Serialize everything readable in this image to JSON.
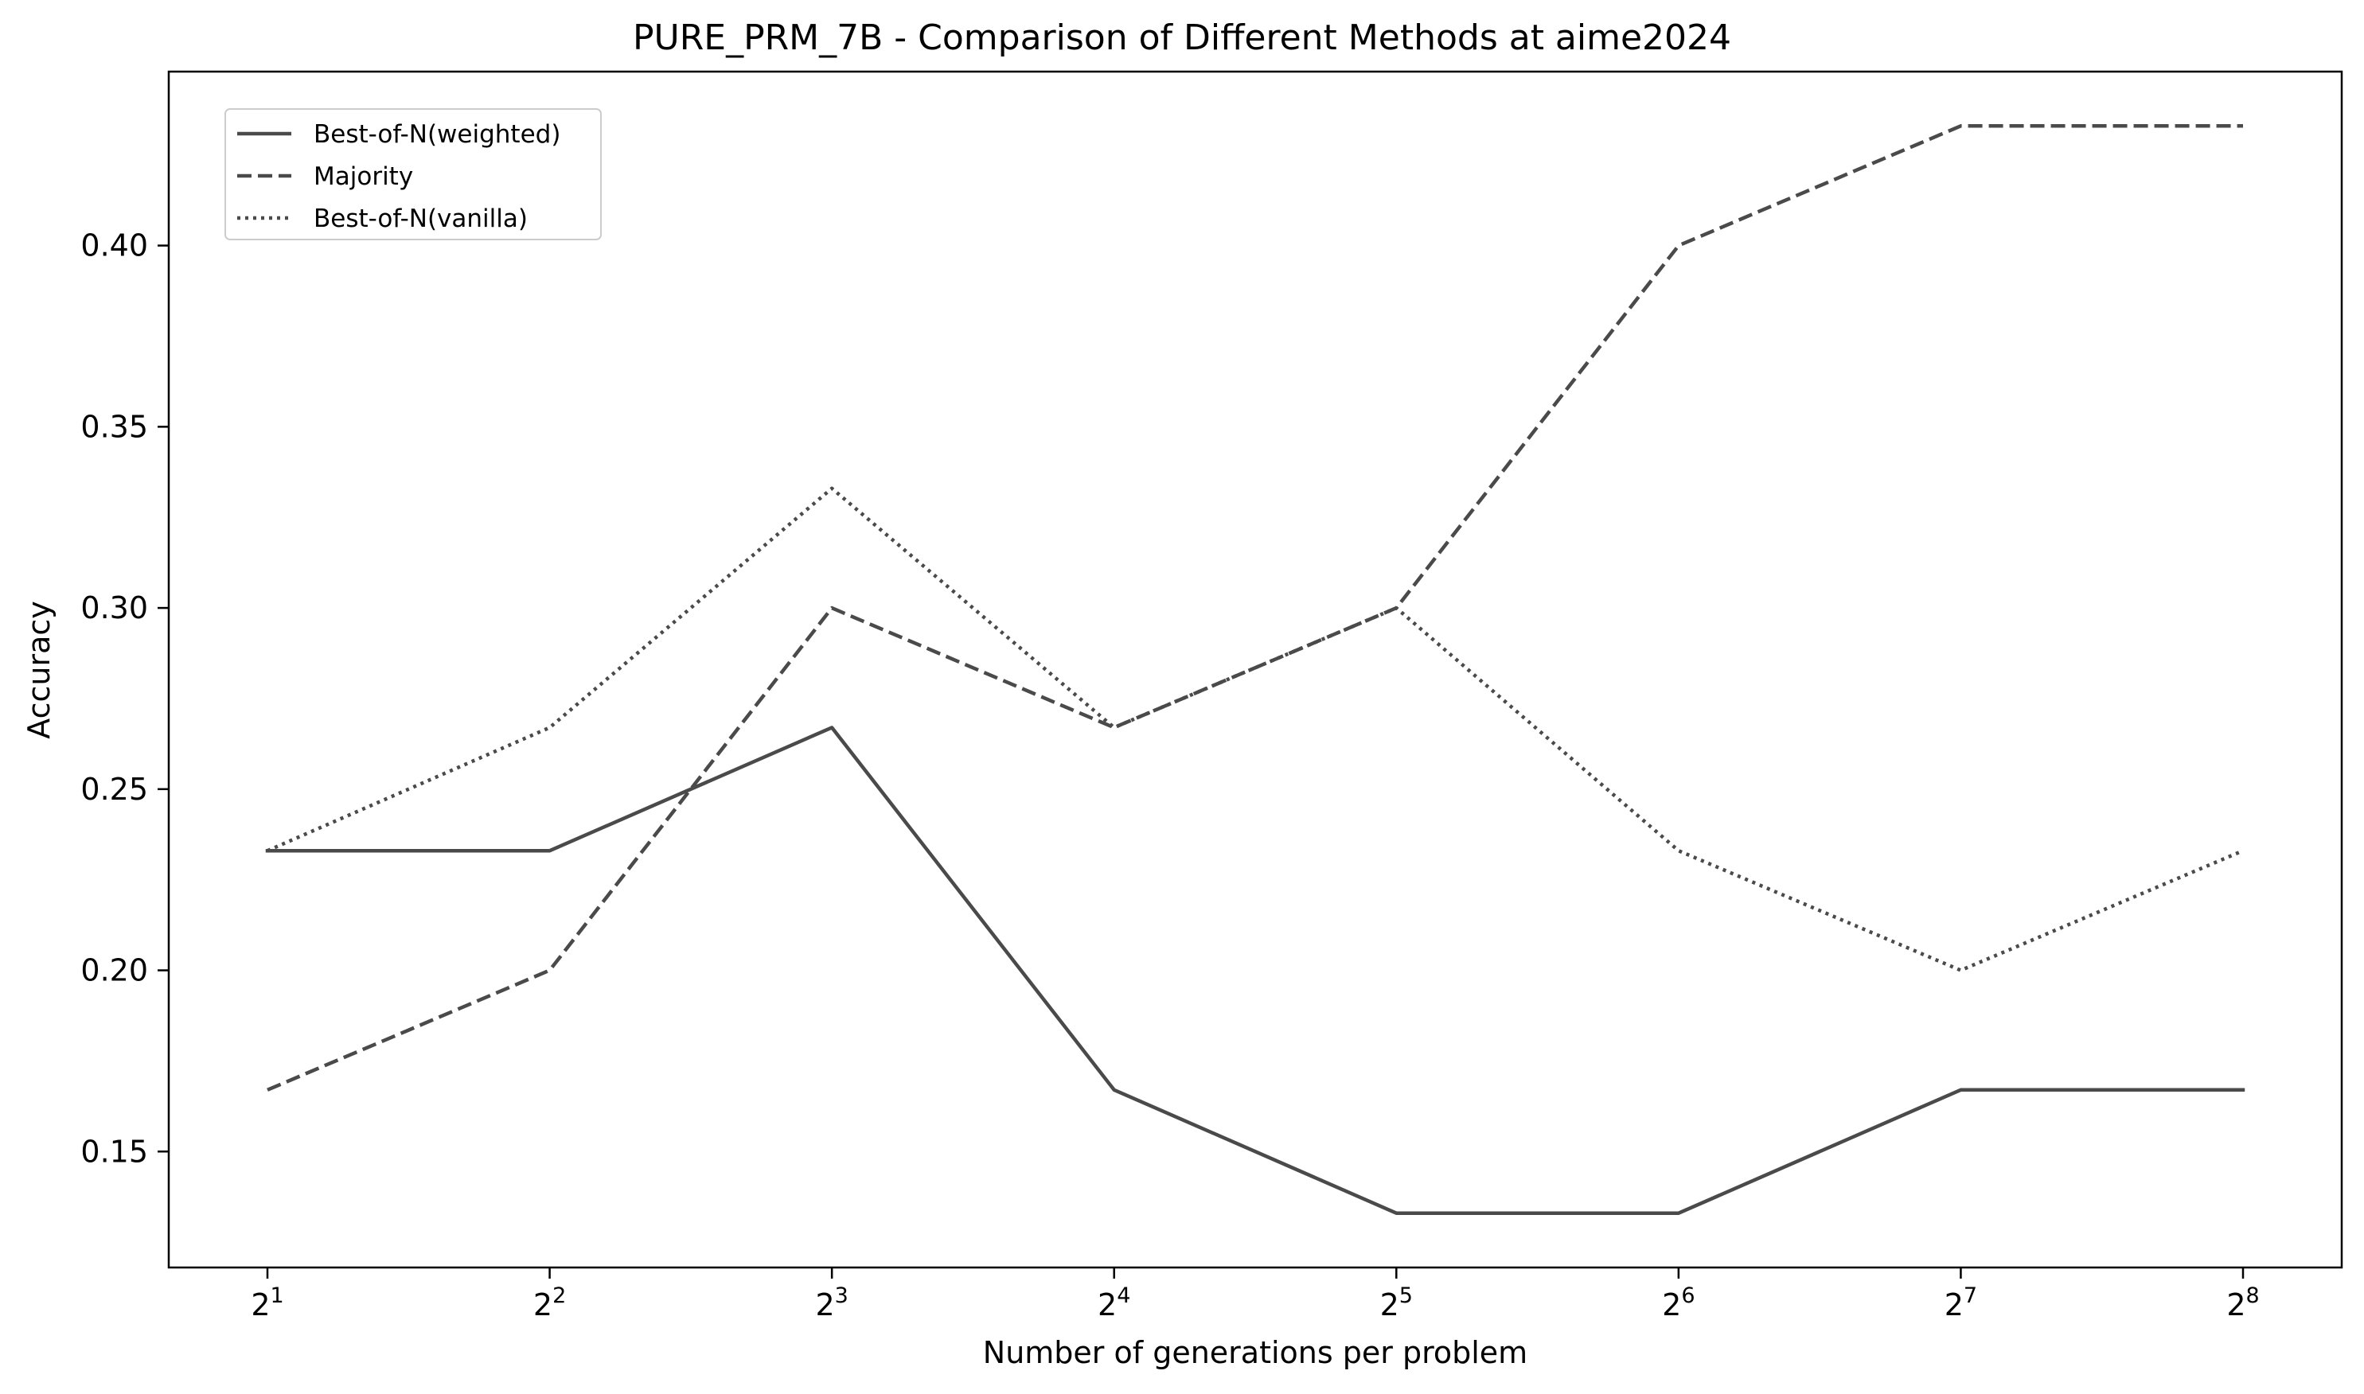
{
  "chart_data": {
    "type": "line",
    "title": "PURE_PRM_7B - Comparison of Different Methods at aime2024",
    "xlabel": "Number of generations per problem",
    "ylabel": "Accuracy",
    "x_scale": "log2",
    "x": [
      2,
      4,
      8,
      16,
      32,
      64,
      128,
      256
    ],
    "x_tick_labels": [
      {
        "base": "2",
        "exp": "1"
      },
      {
        "base": "2",
        "exp": "2"
      },
      {
        "base": "2",
        "exp": "3"
      },
      {
        "base": "2",
        "exp": "4"
      },
      {
        "base": "2",
        "exp": "5"
      },
      {
        "base": "2",
        "exp": "6"
      },
      {
        "base": "2",
        "exp": "7"
      },
      {
        "base": "2",
        "exp": "8"
      }
    ],
    "y_ticks": [
      0.15,
      0.2,
      0.25,
      0.3,
      0.35,
      0.4
    ],
    "y_tick_labels": [
      "0.15",
      "0.20",
      "0.25",
      "0.30",
      "0.35",
      "0.40"
    ],
    "ylim": [
      0.118,
      0.448
    ],
    "grid": false,
    "legend_position": "upper-left",
    "line_color": "#4a4a4a",
    "series": [
      {
        "name": "Best-of-N(weighted)",
        "style": "solid",
        "values": [
          0.233,
          0.233,
          0.267,
          0.167,
          0.133,
          0.133,
          0.167,
          0.167
        ]
      },
      {
        "name": "Majority",
        "style": "dashed",
        "values": [
          0.167,
          0.2,
          0.3,
          0.267,
          0.3,
          0.4,
          0.433,
          0.433
        ]
      },
      {
        "name": "Best-of-N(vanilla)",
        "style": "dotted",
        "values": [
          0.233,
          0.267,
          0.333,
          0.267,
          0.3,
          0.233,
          0.2,
          0.233
        ]
      }
    ]
  }
}
